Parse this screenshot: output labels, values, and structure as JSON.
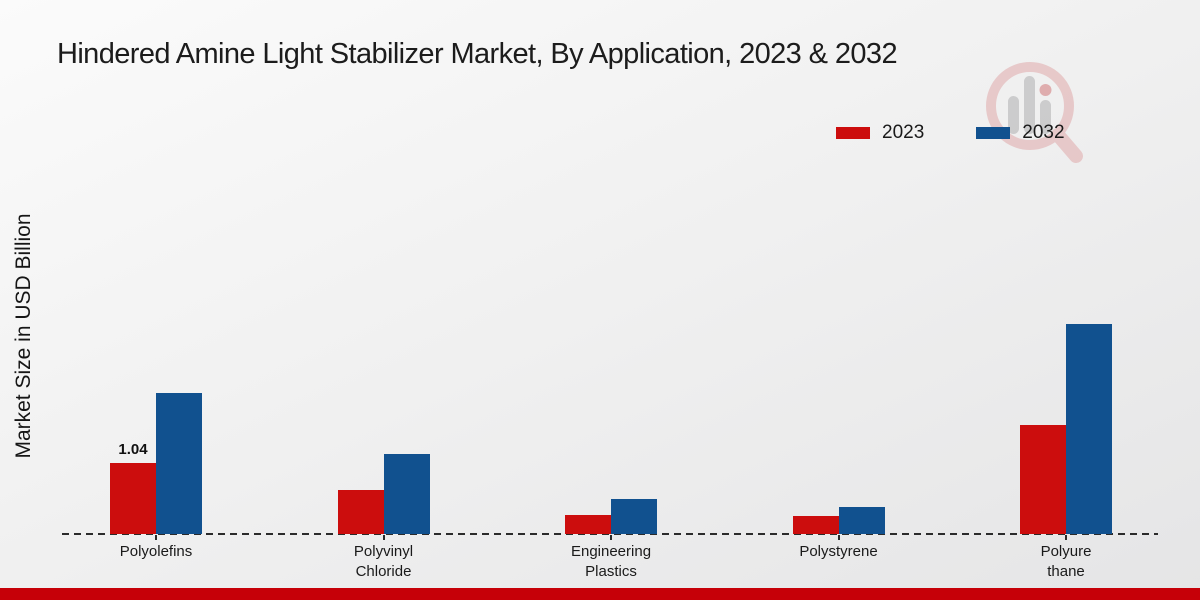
{
  "title": "Hindered Amine Light Stabilizer Market, By Application, 2023 & 2032",
  "y_axis_label": "Market Size in USD Billion",
  "colors": {
    "series_2023": "#cc0d0d",
    "series_2032": "#11518f",
    "footer_bar": "#c60008",
    "axis": "#2b2b2b",
    "text": "#1a1a1a"
  },
  "legend": {
    "position": "top-right",
    "items": [
      {
        "label": "2023",
        "color": "#cc0d0d"
      },
      {
        "label": "2032",
        "color": "#11518f"
      }
    ]
  },
  "watermark": "magnifier-chart-logo",
  "chart_data": {
    "type": "bar",
    "title": "Hindered Amine Light Stabilizer Market, By Application, 2023 & 2032",
    "xlabel": "",
    "ylabel": "Market Size in USD Billion",
    "categories": [
      "Polyolefins",
      "Polyvinyl Chloride",
      "Engineering Plastics",
      "Polystyrene",
      "Polyurethane"
    ],
    "category_label_lines": [
      [
        "Polyolefins"
      ],
      [
        "Polyvinyl",
        "Chloride"
      ],
      [
        "Engineering",
        "Plastics"
      ],
      [
        "Polystyrene"
      ],
      [
        "Polyure",
        "thane"
      ]
    ],
    "series": [
      {
        "name": "2023",
        "color": "#cc0d0d",
        "values": [
          1.04,
          0.65,
          0.28,
          0.27,
          1.6
        ]
      },
      {
        "name": "2032",
        "color": "#11518f",
        "values": [
          2.06,
          1.17,
          0.51,
          0.4,
          3.07
        ]
      }
    ],
    "data_labels": [
      {
        "series": "2023",
        "category_index": 0,
        "text": "1.04"
      }
    ],
    "ylim": [
      0,
      3.2
    ],
    "grid": false,
    "baseline_style": "dashed",
    "legend_position": "top-right"
  }
}
